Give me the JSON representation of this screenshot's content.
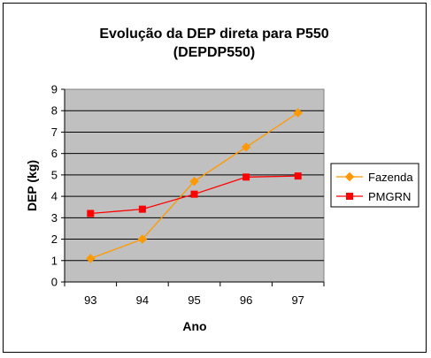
{
  "chart_data": {
    "type": "line",
    "title_lines": [
      "Evolução da DEP direta para P550",
      "(DEPDP550)"
    ],
    "xlabel": "Ano",
    "ylabel": "DEP (kg)",
    "categories": [
      "93",
      "94",
      "95",
      "96",
      "97"
    ],
    "ylim": [
      0,
      9
    ],
    "yticks": [
      "0",
      "1",
      "2",
      "3",
      "4",
      "5",
      "6",
      "7",
      "8",
      "9"
    ],
    "grid": true,
    "legend_position": "right",
    "plot_background": "#c0c0c0",
    "series": [
      {
        "name": "Fazenda",
        "color": "#ff9900",
        "marker": "diamond",
        "values": [
          1.1,
          2.0,
          4.7,
          6.3,
          7.9
        ]
      },
      {
        "name": "PMGRN",
        "color": "#ff0000",
        "marker": "square",
        "values": [
          3.2,
          3.4,
          4.1,
          4.9,
          4.95
        ]
      }
    ]
  }
}
